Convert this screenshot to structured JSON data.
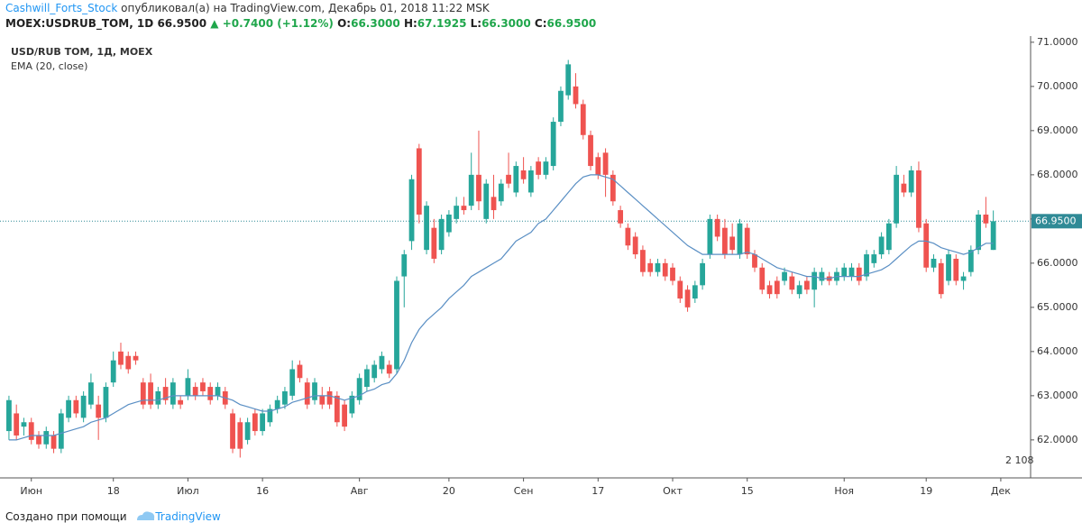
{
  "header": {
    "author": "Cashwill_Forts_Stock",
    "published": "опубликовал(а) на TradingView.com, Декабрь 01, 2018 11:22 MSK",
    "symbol": "MOEX:USDRUB_TOM, 1D",
    "last": "66.9500",
    "arrow": "▲",
    "change": "+0.7400 (+1.12%)",
    "open": {
      "label": "O:",
      "value": "66.3000"
    },
    "high": {
      "label": "H:",
      "value": "67.1925"
    },
    "low": {
      "label": "L:",
      "value": "66.3000"
    },
    "close": {
      "label": "C:",
      "value": "66.9500"
    }
  },
  "footer": {
    "text": "Создано при помощи",
    "link": "TradingView"
  },
  "badge": "2 108",
  "chart_data": {
    "type": "candlestick",
    "symbol_label": "USD/RUB TOM, 1Д, MOEX",
    "up_color": "#26a69a",
    "down_color": "#ef5350",
    "xlim": [
      -1.2,
      137
    ],
    "ylim": [
      61.14,
      71.14
    ],
    "xticks": [
      {
        "value": 3,
        "label": "Июн"
      },
      {
        "value": 14,
        "label": "18"
      },
      {
        "value": 24,
        "label": "Июл"
      },
      {
        "value": 34,
        "label": "16"
      },
      {
        "value": 47,
        "label": "Авг"
      },
      {
        "value": 59,
        "label": "20"
      },
      {
        "value": 69,
        "label": "Сен"
      },
      {
        "value": 79,
        "label": "17"
      },
      {
        "value": 89,
        "label": "Окт"
      },
      {
        "value": 99,
        "label": "15"
      },
      {
        "value": 112,
        "label": "Ноя"
      },
      {
        "value": 123,
        "label": "19"
      },
      {
        "value": 133,
        "label": "Дек"
      }
    ],
    "yticks": [
      {
        "value": 62,
        "label": "62.0000"
      },
      {
        "value": 63,
        "label": "63.0000"
      },
      {
        "value": 64,
        "label": "64.0000"
      },
      {
        "value": 65,
        "label": "65.0000"
      },
      {
        "value": 66,
        "label": "66.0000"
      },
      {
        "value": 67,
        "label": "67.0000"
      },
      {
        "value": 68,
        "label": "68.0000"
      },
      {
        "value": 69,
        "label": "69.0000"
      },
      {
        "value": 70,
        "label": "70.0000"
      },
      {
        "value": 71,
        "label": "71.0000"
      }
    ],
    "last_price": {
      "value": 66.95,
      "label": "66.9500",
      "color": "#2f8a96"
    },
    "candles": [
      [
        62.2,
        63.0,
        62.0,
        62.9
      ],
      [
        62.6,
        62.8,
        62.0,
        62.1
      ],
      [
        62.3,
        62.5,
        62.1,
        62.4
      ],
      [
        62.4,
        62.5,
        61.9,
        62.0
      ],
      [
        62.1,
        62.2,
        61.8,
        61.9
      ],
      [
        61.9,
        62.3,
        61.8,
        62.2
      ],
      [
        62.1,
        62.2,
        61.7,
        61.8
      ],
      [
        61.8,
        62.7,
        61.7,
        62.6
      ],
      [
        62.5,
        63.0,
        62.4,
        62.9
      ],
      [
        62.9,
        63.0,
        62.5,
        62.6
      ],
      [
        62.5,
        63.1,
        62.4,
        63.0
      ],
      [
        62.8,
        63.5,
        62.7,
        63.3
      ],
      [
        62.8,
        63.0,
        62.0,
        62.5
      ],
      [
        62.5,
        63.3,
        62.4,
        63.2
      ],
      [
        63.3,
        64.0,
        63.2,
        63.8
      ],
      [
        64.0,
        64.2,
        63.6,
        63.7
      ],
      [
        63.9,
        64.0,
        63.5,
        63.6
      ],
      [
        63.9,
        64.0,
        63.7,
        63.8
      ],
      [
        63.3,
        63.4,
        62.7,
        62.8
      ],
      [
        63.3,
        63.5,
        62.7,
        62.8
      ],
      [
        62.8,
        63.2,
        62.7,
        63.1
      ],
      [
        63.2,
        63.4,
        62.8,
        62.9
      ],
      [
        62.8,
        63.4,
        62.7,
        63.3
      ],
      [
        62.9,
        63.0,
        62.7,
        62.8
      ],
      [
        63.0,
        63.6,
        62.9,
        63.4
      ],
      [
        63.2,
        63.3,
        62.9,
        63.0
      ],
      [
        63.3,
        63.4,
        63.0,
        63.1
      ],
      [
        63.2,
        63.3,
        62.8,
        62.9
      ],
      [
        63.0,
        63.3,
        62.9,
        63.2
      ],
      [
        63.1,
        63.2,
        62.7,
        62.8
      ],
      [
        62.6,
        62.7,
        61.7,
        61.8
      ],
      [
        62.4,
        62.5,
        61.6,
        61.8
      ],
      [
        62.0,
        62.5,
        61.9,
        62.4
      ],
      [
        62.6,
        62.7,
        62.1,
        62.2
      ],
      [
        62.2,
        62.7,
        62.1,
        62.6
      ],
      [
        62.4,
        62.8,
        62.3,
        62.7
      ],
      [
        62.7,
        63.0,
        62.6,
        62.9
      ],
      [
        62.8,
        63.2,
        62.7,
        63.1
      ],
      [
        63.0,
        63.8,
        62.9,
        63.6
      ],
      [
        63.7,
        63.8,
        63.3,
        63.4
      ],
      [
        63.3,
        63.4,
        62.7,
        62.8
      ],
      [
        62.9,
        63.4,
        62.8,
        63.3
      ],
      [
        63.0,
        63.2,
        62.7,
        62.8
      ],
      [
        63.1,
        63.2,
        62.7,
        62.8
      ],
      [
        63.0,
        63.1,
        62.3,
        62.4
      ],
      [
        62.8,
        62.9,
        62.2,
        62.3
      ],
      [
        62.6,
        63.1,
        62.5,
        63.0
      ],
      [
        62.9,
        63.5,
        62.8,
        63.4
      ],
      [
        63.2,
        63.7,
        63.1,
        63.6
      ],
      [
        63.4,
        63.8,
        63.3,
        63.7
      ],
      [
        63.6,
        64.0,
        63.5,
        63.9
      ],
      [
        63.7,
        63.8,
        63.4,
        63.5
      ],
      [
        63.6,
        65.7,
        63.5,
        65.6
      ],
      [
        65.7,
        66.3,
        65.0,
        66.2
      ],
      [
        66.5,
        68.0,
        66.3,
        67.9
      ],
      [
        68.6,
        68.7,
        66.9,
        67.1
      ],
      [
        66.3,
        67.4,
        66.2,
        67.3
      ],
      [
        66.8,
        67.0,
        66.0,
        66.1
      ],
      [
        66.3,
        67.1,
        66.2,
        67.0
      ],
      [
        66.7,
        67.2,
        66.6,
        67.1
      ],
      [
        67.0,
        67.5,
        66.9,
        67.3
      ],
      [
        67.3,
        67.5,
        67.1,
        67.2
      ],
      [
        67.3,
        68.5,
        67.2,
        68.0
      ],
      [
        68.0,
        69.0,
        67.2,
        67.4
      ],
      [
        67.0,
        67.9,
        66.9,
        67.8
      ],
      [
        67.5,
        68.0,
        67.0,
        67.2
      ],
      [
        67.4,
        67.9,
        67.3,
        67.8
      ],
      [
        68.0,
        68.5,
        67.7,
        67.8
      ],
      [
        67.6,
        68.3,
        67.5,
        68.2
      ],
      [
        68.1,
        68.4,
        67.8,
        67.9
      ],
      [
        67.6,
        68.2,
        67.5,
        68.1
      ],
      [
        68.3,
        68.4,
        67.9,
        68.0
      ],
      [
        68.0,
        68.4,
        67.9,
        68.3
      ],
      [
        68.2,
        69.3,
        68.1,
        69.2
      ],
      [
        69.2,
        70.0,
        69.1,
        69.9
      ],
      [
        69.8,
        70.6,
        69.7,
        70.5
      ],
      [
        70.0,
        70.3,
        69.5,
        69.6
      ],
      [
        69.6,
        69.7,
        68.8,
        68.9
      ],
      [
        68.9,
        69.0,
        68.1,
        68.2
      ],
      [
        68.4,
        68.5,
        67.9,
        68.0
      ],
      [
        68.5,
        68.6,
        67.5,
        68.0
      ],
      [
        68.0,
        68.1,
        67.3,
        67.4
      ],
      [
        67.2,
        67.3,
        66.8,
        66.9
      ],
      [
        66.8,
        66.9,
        66.3,
        66.4
      ],
      [
        66.6,
        66.7,
        66.1,
        66.2
      ],
      [
        66.3,
        66.4,
        65.7,
        65.8
      ],
      [
        66.0,
        66.1,
        65.7,
        65.8
      ],
      [
        65.8,
        66.1,
        65.7,
        66.0
      ],
      [
        66.0,
        66.1,
        65.6,
        65.7
      ],
      [
        65.9,
        66.0,
        65.5,
        65.6
      ],
      [
        65.6,
        65.7,
        65.1,
        65.2
      ],
      [
        65.4,
        65.5,
        64.9,
        65.0
      ],
      [
        65.2,
        65.6,
        65.1,
        65.5
      ],
      [
        65.5,
        66.1,
        65.4,
        66.0
      ],
      [
        66.2,
        67.1,
        66.1,
        67.0
      ],
      [
        67.0,
        67.1,
        66.5,
        66.6
      ],
      [
        66.8,
        67.0,
        66.1,
        66.2
      ],
      [
        66.6,
        66.9,
        66.2,
        66.3
      ],
      [
        66.2,
        67.0,
        66.1,
        66.9
      ],
      [
        66.8,
        66.9,
        66.1,
        66.2
      ],
      [
        66.2,
        66.3,
        65.8,
        65.9
      ],
      [
        65.9,
        66.0,
        65.3,
        65.4
      ],
      [
        65.5,
        65.6,
        65.2,
        65.3
      ],
      [
        65.6,
        65.7,
        65.2,
        65.3
      ],
      [
        65.6,
        65.9,
        65.5,
        65.8
      ],
      [
        65.7,
        65.8,
        65.3,
        65.4
      ],
      [
        65.3,
        65.6,
        65.2,
        65.5
      ],
      [
        65.6,
        65.7,
        65.3,
        65.4
      ],
      [
        65.4,
        65.9,
        65.0,
        65.8
      ],
      [
        65.6,
        65.9,
        65.5,
        65.8
      ],
      [
        65.7,
        65.8,
        65.5,
        65.6
      ],
      [
        65.6,
        65.9,
        65.5,
        65.8
      ],
      [
        65.7,
        66.0,
        65.6,
        65.9
      ],
      [
        65.7,
        66.0,
        65.6,
        65.9
      ],
      [
        65.9,
        66.0,
        65.5,
        65.6
      ],
      [
        65.7,
        66.3,
        65.6,
        66.2
      ],
      [
        66.0,
        66.3,
        65.9,
        66.2
      ],
      [
        66.2,
        66.7,
        66.1,
        66.6
      ],
      [
        66.3,
        67.0,
        66.2,
        66.9
      ],
      [
        66.9,
        68.2,
        66.8,
        68.0
      ],
      [
        67.8,
        68.0,
        67.5,
        67.6
      ],
      [
        67.6,
        68.2,
        67.5,
        68.1
      ],
      [
        68.1,
        68.3,
        66.7,
        66.8
      ],
      [
        66.9,
        67.0,
        65.8,
        65.9
      ],
      [
        65.9,
        66.2,
        65.8,
        66.1
      ],
      [
        66.0,
        66.1,
        65.2,
        65.3
      ],
      [
        65.6,
        66.3,
        65.5,
        66.2
      ],
      [
        66.1,
        66.2,
        65.5,
        65.6
      ],
      [
        65.6,
        65.8,
        65.4,
        65.7
      ],
      [
        65.8,
        66.4,
        65.7,
        66.3
      ],
      [
        66.3,
        67.2,
        66.2,
        67.1
      ],
      [
        67.1,
        67.5,
        66.8,
        66.9
      ],
      [
        66.3,
        67.1925,
        66.3,
        66.95
      ]
    ],
    "overlay": {
      "name": "EMA (20, close)",
      "color": "#5a8fc4",
      "values": [
        62.0,
        62.0,
        62.05,
        62.1,
        62.1,
        62.1,
        62.1,
        62.15,
        62.2,
        62.25,
        62.3,
        62.4,
        62.45,
        62.5,
        62.6,
        62.7,
        62.8,
        62.85,
        62.9,
        62.9,
        62.9,
        62.95,
        63.0,
        63.0,
        63.0,
        63.0,
        63.0,
        63.0,
        63.0,
        62.95,
        62.9,
        62.8,
        62.75,
        62.7,
        62.65,
        62.65,
        62.7,
        62.75,
        62.85,
        62.9,
        62.95,
        63.0,
        63.0,
        63.0,
        62.95,
        62.9,
        62.95,
        63.0,
        63.1,
        63.15,
        63.25,
        63.3,
        63.5,
        63.8,
        64.2,
        64.5,
        64.7,
        64.85,
        65.0,
        65.2,
        65.35,
        65.5,
        65.7,
        65.8,
        65.9,
        66.0,
        66.1,
        66.3,
        66.5,
        66.6,
        66.7,
        66.9,
        67.0,
        67.2,
        67.4,
        67.6,
        67.8,
        67.95,
        68.0,
        68.0,
        67.95,
        67.9,
        67.75,
        67.6,
        67.45,
        67.3,
        67.15,
        67.0,
        66.85,
        66.7,
        66.55,
        66.4,
        66.3,
        66.2,
        66.2,
        66.2,
        66.2,
        66.2,
        66.2,
        66.25,
        66.2,
        66.1,
        66.0,
        65.9,
        65.85,
        65.8,
        65.75,
        65.7,
        65.7,
        65.65,
        65.65,
        65.7,
        65.7,
        65.7,
        65.7,
        65.75,
        65.8,
        65.85,
        65.95,
        66.1,
        66.25,
        66.4,
        66.5,
        66.5,
        66.45,
        66.35,
        66.3,
        66.25,
        66.2,
        66.25,
        66.35,
        66.45,
        66.45
      ]
    }
  }
}
